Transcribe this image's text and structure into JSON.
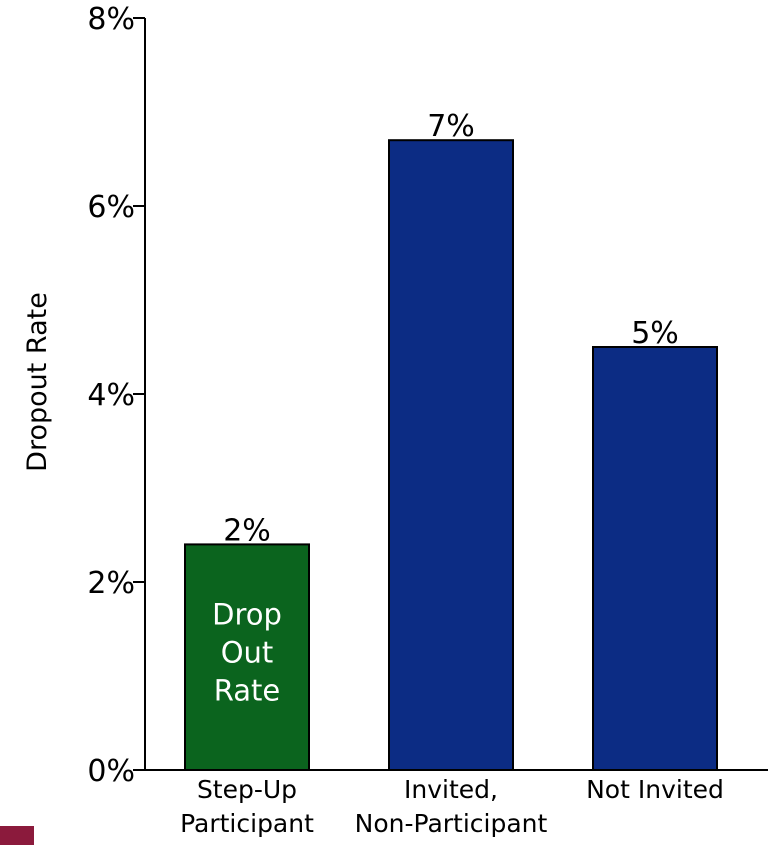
{
  "chart_data": {
    "type": "bar",
    "categories": [
      "Step-Up Participant",
      "Invited, Non-Participant",
      "Not Invited"
    ],
    "category_lines": [
      [
        "Step-Up",
        "Participant"
      ],
      [
        "Invited,",
        "Non-Participant"
      ],
      [
        "Not Invited"
      ]
    ],
    "values": [
      2.4,
      6.7,
      4.5
    ],
    "data_labels": [
      "2%",
      "7%",
      "5%"
    ],
    "bar_colors": [
      "#0b641e",
      "#0c2c84",
      "#0c2c84"
    ],
    "bar_inner_text": [
      [
        "Drop",
        "Out",
        "Rate"
      ],
      [],
      []
    ],
    "ylabel": "Dropout Rate",
    "ylim": [
      0,
      8
    ],
    "yticks": [
      0,
      2,
      4,
      6,
      8
    ],
    "ytick_labels": [
      "0%",
      "2%",
      "4%",
      "6%",
      "8%"
    ],
    "grid": false,
    "legend": "none"
  }
}
